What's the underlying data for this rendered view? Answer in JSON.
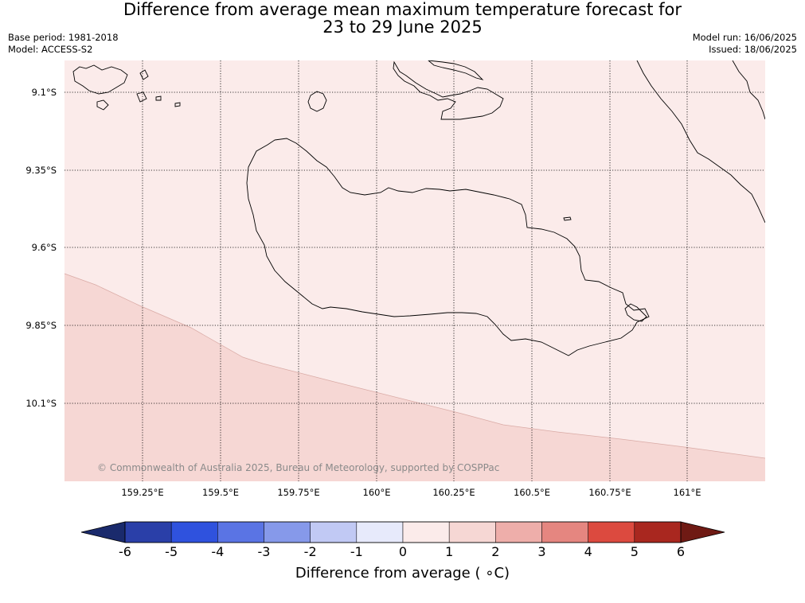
{
  "header": {
    "title_line1": "Difference from average mean maximum temperature forecast for",
    "title_line2": "23 to 29 June 2025",
    "base_period": "Base period: 1981-2018",
    "model": "Model: ACCESS-S2",
    "model_run": "Model run: 16/06/2025",
    "issued": "Issued: 18/06/2025"
  },
  "map": {
    "lat_labels": [
      "9.1°S",
      "9.35°S",
      "9.6°S",
      "9.85°S",
      "10.1°S"
    ],
    "lon_labels": [
      "159.25°E",
      "159.5°E",
      "159.75°E",
      "160°E",
      "160.25°E",
      "160.5°E",
      "160.75°E",
      "161°E"
    ],
    "copyright": "© Commonwealth of Australia 2025, Bureau of Meteorology, supported by COSPPac",
    "region_colors": {
      "upper": "#fbebea",
      "lower": "#f6d7d4"
    },
    "region_values_degC": {
      "upper": "0 to 1",
      "lower": "1 to 2"
    }
  },
  "colorbar": {
    "title": "Difference from average ( ∘C)",
    "tick_labels": [
      "-6",
      "-5",
      "-4",
      "-3",
      "-2",
      "-1",
      "0",
      "1",
      "2",
      "3",
      "4",
      "5",
      "6"
    ],
    "under_color": "#1a2a6c",
    "over_color": "#6f1a14",
    "bin_colors": [
      "#2a3fa8",
      "#2f52de",
      "#5a74e4",
      "#8699ea",
      "#c1c9f4",
      "#e7eafb",
      "#fbebea",
      "#f6d7d4",
      "#eeaeaa",
      "#e58680",
      "#dc4a3f",
      "#a9271f"
    ]
  }
}
